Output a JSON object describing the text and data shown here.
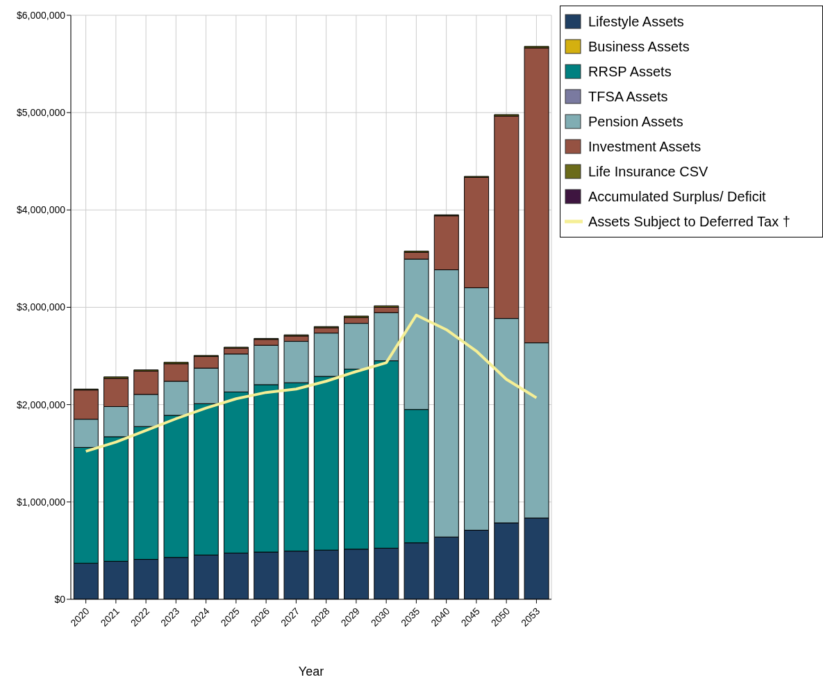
{
  "chart_data": {
    "type": "bar",
    "stacked": true,
    "xlabel": "Year",
    "categories": [
      "2020",
      "2021",
      "2022",
      "2023",
      "2024",
      "2025",
      "2026",
      "2027",
      "2028",
      "2029",
      "2030",
      "2035",
      "2040",
      "2045",
      "2050",
      "2053"
    ],
    "series": [
      {
        "name": "Lifestyle Assets",
        "color": "#1f3f63",
        "values": [
          370000,
          390000,
          410000,
          430000,
          455000,
          475000,
          485000,
          495000,
          505000,
          515000,
          525000,
          580000,
          640000,
          710000,
          785000,
          835000
        ]
      },
      {
        "name": "Business Assets",
        "color": "#d4b010",
        "values": [
          0,
          0,
          0,
          0,
          0,
          0,
          0,
          0,
          0,
          0,
          0,
          0,
          0,
          0,
          0,
          0
        ]
      },
      {
        "name": "RRSP Assets",
        "color": "#008080",
        "values": [
          1190000,
          1280000,
          1365000,
          1460000,
          1555000,
          1655000,
          1720000,
          1730000,
          1785000,
          1850000,
          1925000,
          1370000,
          0,
          0,
          0,
          0
        ]
      },
      {
        "name": "TFSA Assets",
        "color": "#7a7aa0",
        "values": [
          0,
          0,
          0,
          0,
          0,
          0,
          0,
          0,
          0,
          0,
          0,
          0,
          0,
          0,
          0,
          0
        ]
      },
      {
        "name": "Pension Assets",
        "color": "#80adb3",
        "values": [
          290000,
          310000,
          330000,
          350000,
          365000,
          390000,
          405000,
          425000,
          445000,
          470000,
          495000,
          1545000,
          2745000,
          2490000,
          2100000,
          1800000
        ]
      },
      {
        "name": "Investment Assets",
        "color": "#955242",
        "values": [
          300000,
          290000,
          240000,
          180000,
          120000,
          60000,
          60000,
          55000,
          55000,
          60000,
          55000,
          70000,
          555000,
          1135000,
          2080000,
          3030000
        ]
      },
      {
        "name": "Life Insurance CSV",
        "color": "#6b6b1a",
        "values": [
          10000,
          15000,
          12000,
          15000,
          10000,
          10000,
          10000,
          12000,
          12000,
          15000,
          15000,
          12000,
          10000,
          10000,
          15000,
          15000
        ]
      },
      {
        "name": "Accumulated Surplus/ Deficit",
        "color": "#3e1540",
        "values": [
          0,
          0,
          0,
          0,
          0,
          0,
          0,
          0,
          0,
          0,
          0,
          0,
          0,
          0,
          0,
          0
        ]
      },
      {
        "name": "Assets Subject to Deferred Tax †",
        "type": "line",
        "color": "#f5ef96",
        "values": [
          1520000,
          1615000,
          1735000,
          1855000,
          1965000,
          2060000,
          2125000,
          2160000,
          2240000,
          2340000,
          2430000,
          2920000,
          2770000,
          2550000,
          2260000,
          2070000
        ]
      }
    ],
    "ylim": [
      0,
      6000000
    ],
    "yticks": [
      {
        "value": 0,
        "label": "$0"
      },
      {
        "value": 1000000,
        "label": "$1,000,000"
      },
      {
        "value": 2000000,
        "label": "$2,000,000"
      },
      {
        "value": 3000000,
        "label": "$3,000,000"
      },
      {
        "value": 4000000,
        "label": "$4,000,000"
      },
      {
        "value": 5000000,
        "label": "$5,000,000"
      },
      {
        "value": 6000000,
        "label": "$6,000,000"
      }
    ],
    "grid": true,
    "legend": "top right",
    "marker": "none"
  }
}
